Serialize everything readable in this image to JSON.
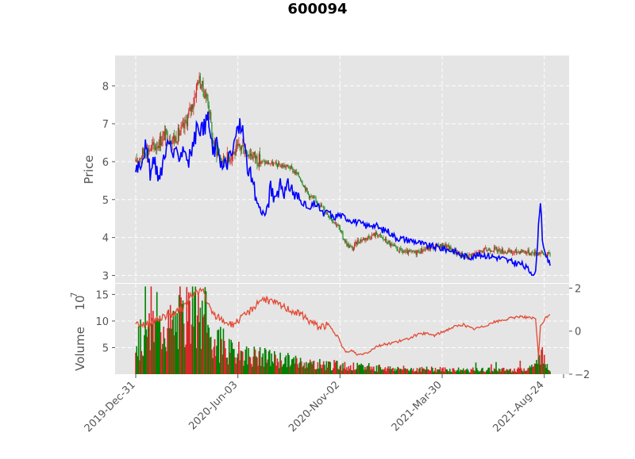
{
  "chart_data": {
    "type": "candlestick",
    "title": "600094",
    "price_panel": {
      "ylabel": "Price",
      "yticks": [
        3,
        4,
        5,
        6,
        7,
        8
      ],
      "ylim": [
        2.8,
        8.8
      ],
      "candle_colors": {
        "up": "#d62728",
        "down": "#228b22"
      },
      "overlay_color": "#0000ff",
      "close_keypoints": [
        [
          0,
          6.0
        ],
        [
          10,
          6.3
        ],
        [
          20,
          6.4
        ],
        [
          30,
          6.7
        ],
        [
          40,
          6.6
        ],
        [
          50,
          6.9
        ],
        [
          60,
          7.6
        ],
        [
          65,
          8.2
        ],
        [
          70,
          7.9
        ],
        [
          75,
          7.6
        ],
        [
          80,
          6.5
        ],
        [
          90,
          6.0
        ],
        [
          100,
          6.2
        ],
        [
          110,
          6.4
        ],
        [
          120,
          6.2
        ],
        [
          130,
          6.0
        ],
        [
          140,
          5.95
        ],
        [
          150,
          5.9
        ],
        [
          160,
          5.85
        ],
        [
          170,
          5.6
        ],
        [
          180,
          5.1
        ],
        [
          190,
          4.9
        ],
        [
          200,
          4.6
        ],
        [
          210,
          4.3
        ],
        [
          215,
          4.0
        ],
        [
          220,
          3.8
        ],
        [
          225,
          3.7
        ],
        [
          230,
          3.9
        ],
        [
          240,
          4.0
        ],
        [
          250,
          4.1
        ],
        [
          260,
          3.9
        ],
        [
          270,
          3.7
        ],
        [
          280,
          3.6
        ],
        [
          290,
          3.6
        ],
        [
          300,
          3.7
        ],
        [
          310,
          3.75
        ],
        [
          320,
          3.8
        ],
        [
          330,
          3.65
        ],
        [
          340,
          3.5
        ],
        [
          350,
          3.55
        ],
        [
          360,
          3.65
        ],
        [
          370,
          3.7
        ],
        [
          380,
          3.65
        ],
        [
          390,
          3.6
        ],
        [
          400,
          3.65
        ],
        [
          410,
          3.6
        ],
        [
          420,
          3.6
        ],
        [
          425,
          3.55
        ],
        [
          430,
          3.55
        ]
      ],
      "overlay_keypoints": [
        [
          0,
          5.9
        ],
        [
          5,
          6.0
        ],
        [
          10,
          6.4
        ],
        [
          15,
          5.7
        ],
        [
          20,
          6.0
        ],
        [
          25,
          5.5
        ],
        [
          30,
          6.3
        ],
        [
          35,
          6.5
        ],
        [
          40,
          6.1
        ],
        [
          45,
          6.2
        ],
        [
          50,
          6.4
        ],
        [
          55,
          6.0
        ],
        [
          60,
          6.5
        ],
        [
          65,
          7.0
        ],
        [
          70,
          6.8
        ],
        [
          75,
          7.2
        ],
        [
          80,
          6.2
        ],
        [
          85,
          6.5
        ],
        [
          90,
          5.8
        ],
        [
          95,
          6.0
        ],
        [
          100,
          6.2
        ],
        [
          105,
          6.8
        ],
        [
          110,
          7.0
        ],
        [
          115,
          6.0
        ],
        [
          120,
          5.5
        ],
        [
          125,
          5.0
        ],
        [
          130,
          4.7
        ],
        [
          135,
          4.6
        ],
        [
          140,
          5.3
        ],
        [
          145,
          5.0
        ],
        [
          150,
          5.5
        ],
        [
          155,
          5.2
        ],
        [
          160,
          5.4
        ],
        [
          165,
          5.1
        ],
        [
          170,
          5.0
        ],
        [
          175,
          4.9
        ],
        [
          180,
          4.7
        ],
        [
          185,
          4.9
        ],
        [
          190,
          4.8
        ],
        [
          195,
          4.6
        ],
        [
          200,
          4.7
        ],
        [
          205,
          4.5
        ],
        [
          210,
          4.6
        ],
        [
          215,
          4.55
        ],
        [
          220,
          4.5
        ],
        [
          225,
          4.45
        ],
        [
          230,
          4.4
        ],
        [
          235,
          4.35
        ],
        [
          240,
          4.3
        ],
        [
          245,
          4.35
        ],
        [
          250,
          4.3
        ],
        [
          255,
          4.2
        ],
        [
          260,
          4.2
        ],
        [
          265,
          4.1
        ],
        [
          270,
          4.0
        ],
        [
          280,
          3.95
        ],
        [
          290,
          3.9
        ],
        [
          300,
          3.8
        ],
        [
          310,
          3.75
        ],
        [
          320,
          3.7
        ],
        [
          330,
          3.65
        ],
        [
          340,
          3.5
        ],
        [
          350,
          3.5
        ],
        [
          360,
          3.55
        ],
        [
          370,
          3.5
        ],
        [
          380,
          3.45
        ],
        [
          390,
          3.35
        ],
        [
          400,
          3.3
        ],
        [
          410,
          3.1
        ],
        [
          415,
          3.05
        ],
        [
          420,
          5.1
        ],
        [
          422,
          4.0
        ],
        [
          425,
          3.5
        ],
        [
          430,
          3.3
        ]
      ]
    },
    "volume_panel": {
      "ylabel": "Volume",
      "scale_exponent": "7",
      "yticks": [
        5,
        10,
        15
      ],
      "ylim": [
        0,
        17
      ],
      "secondary_yticks": [
        2,
        0,
        -2
      ],
      "secondary_ylim": [
        -2,
        2.2
      ],
      "bar_colors": {
        "up": "#d62728",
        "down": "#008000"
      },
      "line_color": "#e24a33",
      "volume_keypoints": [
        [
          0,
          6
        ],
        [
          20,
          8
        ],
        [
          40,
          9
        ],
        [
          60,
          11
        ],
        [
          70,
          9
        ],
        [
          80,
          6
        ],
        [
          100,
          4
        ],
        [
          120,
          3.5
        ],
        [
          140,
          3
        ],
        [
          160,
          2.5
        ],
        [
          180,
          2
        ],
        [
          200,
          1.8
        ],
        [
          220,
          1.5
        ],
        [
          240,
          1.2
        ],
        [
          260,
          1.1
        ],
        [
          280,
          1.0
        ],
        [
          300,
          0.9
        ],
        [
          320,
          0.9
        ],
        [
          340,
          0.8
        ],
        [
          360,
          0.8
        ],
        [
          380,
          0.8
        ],
        [
          400,
          0.9
        ],
        [
          415,
          1.5
        ],
        [
          420,
          4
        ],
        [
          425,
          2
        ],
        [
          430,
          1.2
        ]
      ],
      "line_keypoints": [
        [
          0,
          0.4
        ],
        [
          10,
          0.3
        ],
        [
          20,
          0.5
        ],
        [
          30,
          0.7
        ],
        [
          40,
          0.8
        ],
        [
          50,
          1.1
        ],
        [
          60,
          1.8
        ],
        [
          65,
          1.8
        ],
        [
          70,
          1.9
        ],
        [
          75,
          1.2
        ],
        [
          80,
          0.8
        ],
        [
          90,
          0.5
        ],
        [
          100,
          0.3
        ],
        [
          110,
          0.6
        ],
        [
          120,
          1.0
        ],
        [
          130,
          1.5
        ],
        [
          140,
          1.4
        ],
        [
          150,
          1.2
        ],
        [
          160,
          1.0
        ],
        [
          170,
          0.8
        ],
        [
          180,
          0.5
        ],
        [
          190,
          0.2
        ],
        [
          200,
          0.3
        ],
        [
          210,
          -0.3
        ],
        [
          215,
          -0.8
        ],
        [
          220,
          -1.0
        ],
        [
          225,
          -0.9
        ],
        [
          230,
          -1.1
        ],
        [
          240,
          -1.0
        ],
        [
          250,
          -0.7
        ],
        [
          260,
          -0.6
        ],
        [
          270,
          -0.5
        ],
        [
          280,
          -0.4
        ],
        [
          290,
          -0.2
        ],
        [
          300,
          -0.1
        ],
        [
          310,
          -0.2
        ],
        [
          320,
          0.0
        ],
        [
          330,
          0.2
        ],
        [
          340,
          0.3
        ],
        [
          350,
          0.1
        ],
        [
          360,
          0.2
        ],
        [
          370,
          0.4
        ],
        [
          380,
          0.5
        ],
        [
          390,
          0.6
        ],
        [
          400,
          0.7
        ],
        [
          410,
          0.6
        ],
        [
          415,
          0.6
        ],
        [
          418,
          -1.2
        ],
        [
          420,
          0.2
        ],
        [
          425,
          0.6
        ],
        [
          430,
          0.8
        ]
      ]
    },
    "xtick_labels": [
      "2019-Dec-31",
      "2020-Jun-03",
      "2020-Nov-02",
      "2021-Mar-30",
      "2021-Aug-24"
    ],
    "grid": true,
    "style": "ggplot"
  }
}
